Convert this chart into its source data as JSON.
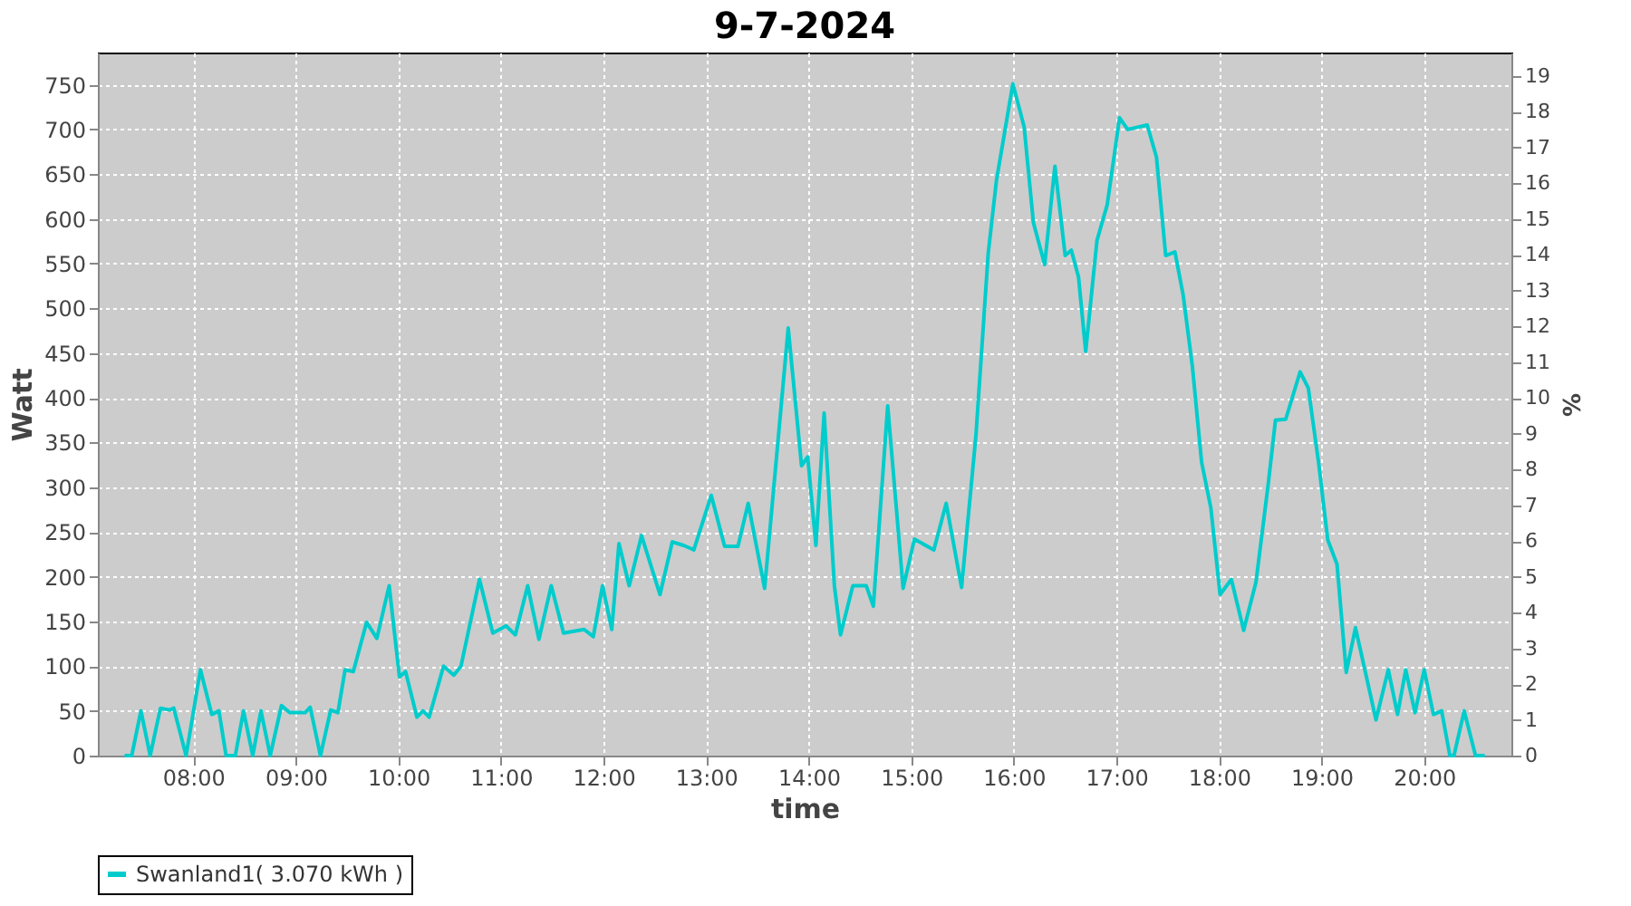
{
  "chart_data": {
    "type": "line",
    "title": "9-7-2024",
    "xlabel": "time",
    "ylabel": "Watt",
    "y2label": "%",
    "xlim": [
      7.07,
      20.85
    ],
    "xticks": [
      {
        "value": 8,
        "label": "08:00"
      },
      {
        "value": 9,
        "label": "09:00"
      },
      {
        "value": 10,
        "label": "10:00"
      },
      {
        "value": 11,
        "label": "11:00"
      },
      {
        "value": 12,
        "label": "12:00"
      },
      {
        "value": 13,
        "label": "13:00"
      },
      {
        "value": 14,
        "label": "14:00"
      },
      {
        "value": 15,
        "label": "15:00"
      },
      {
        "value": 16,
        "label": "16:00"
      },
      {
        "value": 17,
        "label": "17:00"
      },
      {
        "value": 18,
        "label": "18:00"
      },
      {
        "value": 19,
        "label": "19:00"
      },
      {
        "value": 20,
        "label": "20:00"
      }
    ],
    "ylim": [
      0,
      786
    ],
    "yticks": [
      0,
      50,
      100,
      150,
      200,
      250,
      300,
      350,
      400,
      450,
      500,
      550,
      600,
      650,
      700,
      750
    ],
    "y2lim": [
      0,
      19.65
    ],
    "y2ticks": [
      0,
      1,
      2,
      3,
      4,
      5,
      6,
      7,
      8,
      9,
      10,
      11,
      12,
      13,
      14,
      15,
      16,
      17,
      18,
      19
    ],
    "grid": true,
    "legend": "bottom",
    "series": [
      {
        "name": "Swanland1( 3.070 kWh )",
        "color": "#00cccc",
        "x": [
          7.33,
          7.4,
          7.49,
          7.58,
          7.68,
          7.77,
          7.81,
          7.93,
          8.07,
          8.18,
          8.25,
          8.32,
          8.41,
          8.49,
          8.58,
          8.66,
          8.75,
          8.86,
          8.94,
          9.09,
          9.14,
          9.24,
          9.34,
          9.41,
          9.48,
          9.56,
          9.69,
          9.79,
          9.91,
          10.01,
          10.07,
          10.18,
          10.24,
          10.3,
          10.44,
          10.54,
          10.61,
          10.79,
          10.92,
          11.05,
          11.14,
          11.26,
          11.37,
          11.49,
          11.61,
          11.81,
          11.9,
          11.99,
          12.08,
          12.15,
          12.25,
          12.37,
          12.55,
          12.67,
          12.78,
          12.88,
          13.05,
          13.18,
          13.31,
          13.41,
          13.57,
          13.8,
          13.93,
          13.99,
          14.07,
          14.15,
          14.25,
          14.31,
          14.43,
          14.56,
          14.63,
          14.77,
          14.92,
          15.03,
          15.22,
          15.34,
          15.49,
          15.63,
          15.75,
          15.83,
          15.99,
          16.1,
          16.19,
          16.3,
          16.4,
          16.5,
          16.56,
          16.63,
          16.7,
          16.81,
          16.91,
          17.03,
          17.11,
          17.3,
          17.39,
          17.48,
          17.57,
          17.65,
          17.74,
          17.83,
          17.92,
          18.01,
          18.12,
          18.24,
          18.36,
          18.48,
          18.55,
          18.65,
          18.79,
          18.87,
          18.97,
          19.06,
          19.15,
          19.24,
          19.33,
          19.53,
          19.65,
          19.74,
          19.82,
          19.91,
          20.0,
          20.09,
          20.17,
          20.25,
          20.29,
          20.39,
          20.5,
          20.59
        ],
        "values": [
          0,
          0,
          50,
          0,
          53,
          51,
          53,
          0,
          96,
          46,
          50,
          0,
          0,
          50,
          0,
          50,
          0,
          56,
          48,
          48,
          54,
          0,
          51,
          48,
          96,
          94,
          149,
          131,
          190,
          88,
          94,
          43,
          50,
          43,
          100,
          90,
          100,
          197,
          137,
          145,
          135,
          190,
          130,
          190,
          137,
          141,
          133,
          190,
          141,
          237,
          190,
          246,
          180,
          239,
          235,
          230,
          291,
          234,
          234,
          282,
          187,
          478,
          324,
          334,
          235,
          383,
          190,
          135,
          190,
          190,
          167,
          391,
          187,
          242,
          230,
          282,
          188,
          358,
          562,
          643,
          751,
          703,
          596,
          549,
          659,
          559,
          565,
          535,
          452,
          576,
          616,
          713,
          700,
          705,
          669,
          559,
          563,
          515,
          435,
          328,
          277,
          180,
          197,
          140,
          194,
          304,
          375,
          376,
          429,
          411,
          328,
          241,
          214,
          93,
          143,
          40,
          96,
          46,
          96,
          48,
          96,
          46,
          50,
          0,
          0,
          50,
          0,
          0
        ]
      }
    ]
  }
}
